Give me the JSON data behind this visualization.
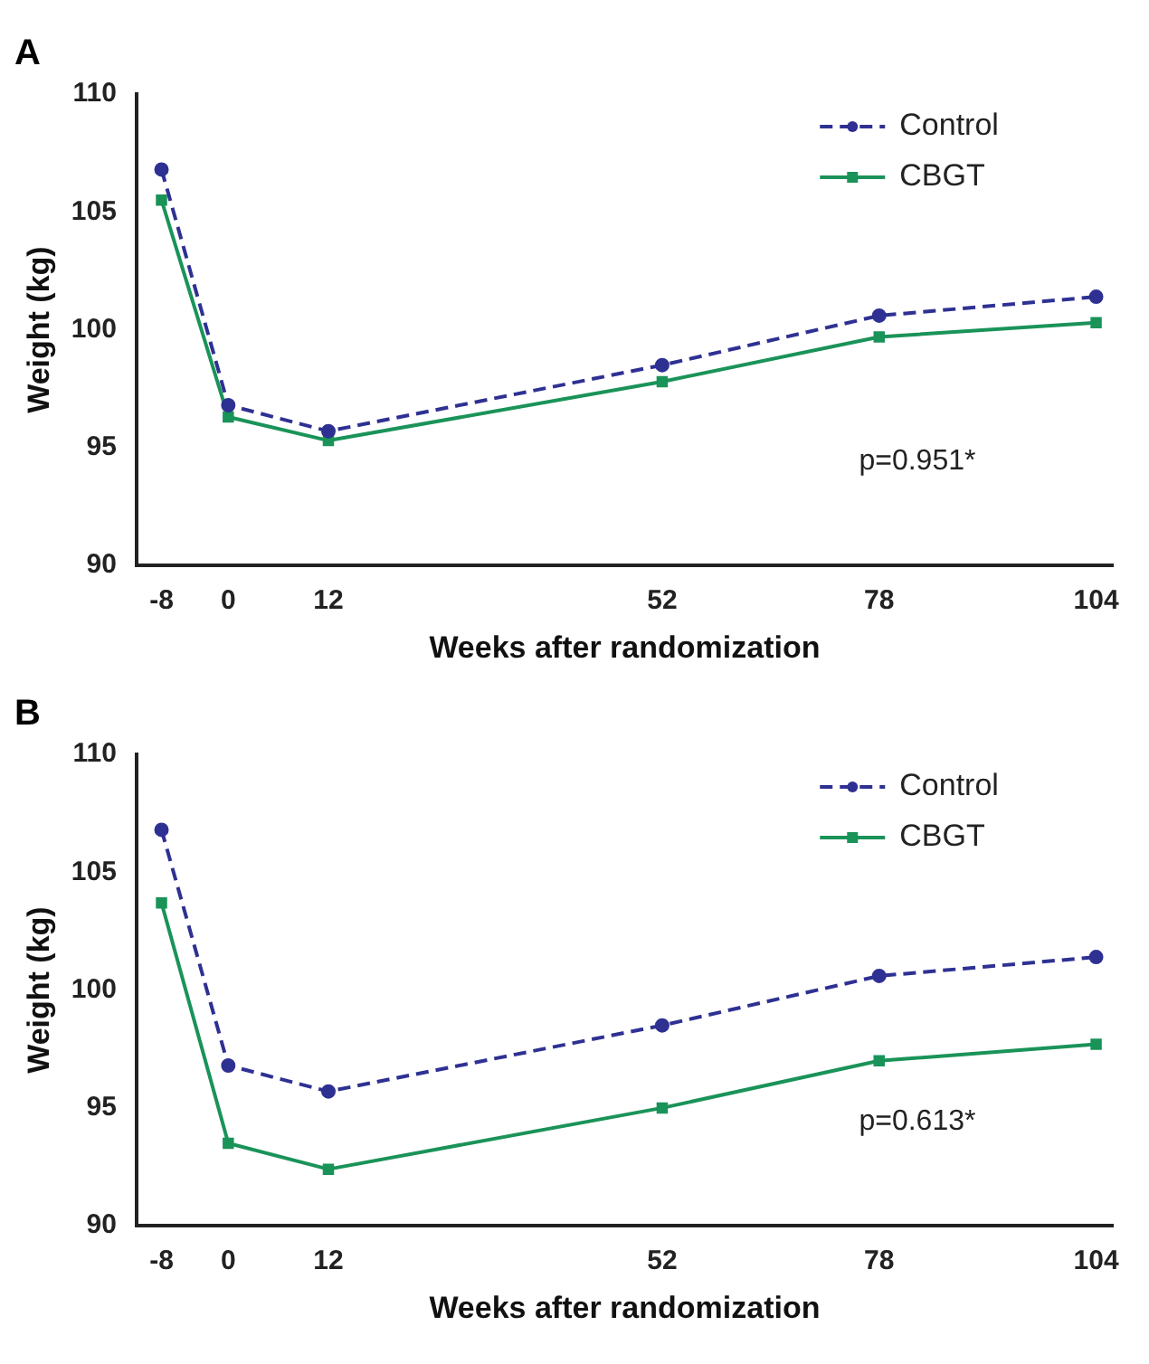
{
  "chart_data": [
    {
      "type": "line",
      "title": "A",
      "xlabel": "Weeks after randomization",
      "ylabel": "Weight (kg)",
      "x": [
        -8,
        0,
        12,
        52,
        78,
        104
      ],
      "xlim": [
        -11,
        106
      ],
      "xticks": [
        -8,
        0,
        12,
        52,
        78,
        104
      ],
      "ylim": [
        90,
        110
      ],
      "yticks": [
        90,
        95,
        100,
        105,
        110
      ],
      "grid": false,
      "legend": "top right",
      "annotations": [
        "p=0.951*"
      ],
      "series": [
        {
          "name": "Control",
          "color": "#2e3192",
          "marker": "circle",
          "line_style": "dashed",
          "values": [
            106.8,
            96.8,
            95.7,
            98.5,
            100.6,
            101.4
          ]
        },
        {
          "name": "CBGT",
          "color": "#1a9359",
          "marker": "square",
          "line_style": "solid",
          "values": [
            105.5,
            96.3,
            95.3,
            97.8,
            99.7,
            100.3
          ]
        }
      ]
    },
    {
      "type": "line",
      "title": "B",
      "xlabel": "Weeks after randomization",
      "ylabel": "Weight (kg)",
      "x": [
        -8,
        0,
        12,
        52,
        78,
        104
      ],
      "xlim": [
        -11,
        106
      ],
      "xticks": [
        -8,
        0,
        12,
        52,
        78,
        104
      ],
      "ylim": [
        90,
        110
      ],
      "yticks": [
        90,
        95,
        100,
        105,
        110
      ],
      "grid": false,
      "legend": "top right",
      "annotations": [
        "p=0.613*"
      ],
      "series": [
        {
          "name": "Control",
          "color": "#2e3192",
          "marker": "circle",
          "line_style": "dashed",
          "values": [
            106.8,
            96.8,
            95.7,
            98.5,
            100.6,
            101.4
          ]
        },
        {
          "name": "CBGT",
          "color": "#1a9359",
          "marker": "square",
          "line_style": "solid",
          "values": [
            103.7,
            93.5,
            92.4,
            95.0,
            97.0,
            97.7
          ]
        }
      ]
    }
  ]
}
